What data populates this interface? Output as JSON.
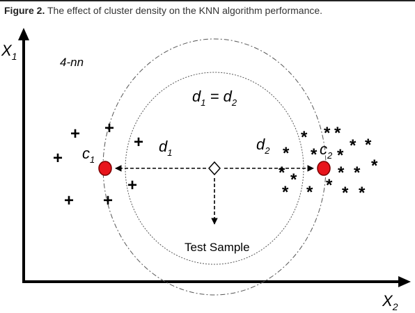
{
  "caption": {
    "label": "Figure 2.",
    "text": "The effect of cluster density on the KNN algorithm performance."
  },
  "diagram": {
    "axis_y_label": "X",
    "axis_y_sub": "1",
    "axis_x_label": "X",
    "axis_x_sub": "2",
    "k_label": "4-nn",
    "equal_label_d1": "d",
    "equal_label_d1_sub": "1",
    "equal_sign": " = ",
    "equal_label_d2": "d",
    "equal_label_d2_sub": "2",
    "d1_label": "d",
    "d1_sub": "1",
    "d2_label": "d",
    "d2_sub": "2",
    "c1_label": "c",
    "c1_sub": "1",
    "c2_label": "c",
    "c2_sub": "2",
    "test_sample_label": "Test Sample",
    "plus_glyph": "+",
    "star_glyph": "*",
    "centroid_color": "#e8141b",
    "line_color": "#000000"
  }
}
